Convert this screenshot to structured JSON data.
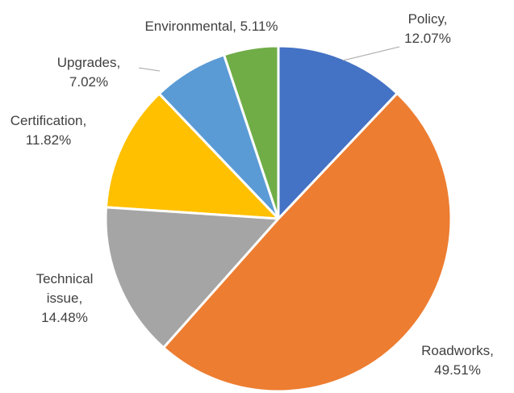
{
  "chart_data": {
    "type": "pie",
    "categories": [
      "Policy",
      "Roadworks",
      "Technical issue",
      "Certification",
      "Upgrades",
      "Environmental"
    ],
    "values": [
      12.07,
      49.51,
      14.48,
      11.82,
      7.02,
      5.11
    ],
    "value_labels": [
      "Policy, 12.07%",
      "Roadworks, 49.51%",
      "Technical issue, 14.48%",
      "Certification, 11.82%",
      "Upgrades, 7.02%",
      "Environmental, 5.11%"
    ],
    "colors": [
      "#4472c4",
      "#ed7d31",
      "#a5a5a5",
      "#ffc000",
      "#5b9bd5",
      "#70ad47"
    ]
  }
}
